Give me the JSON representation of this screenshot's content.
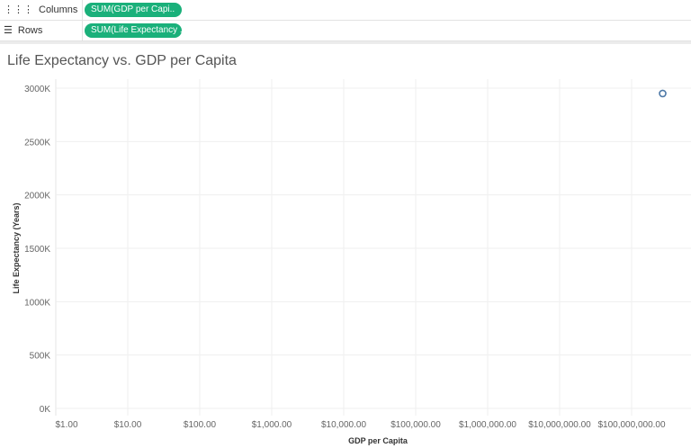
{
  "shelves": {
    "columns": {
      "label": "Columns",
      "icon": "columns-icon",
      "pill": "SUM(GDP per Capi.."
    },
    "rows": {
      "label": "Rows",
      "icon": "rows-icon",
      "pill": "SUM(Life Expectancy .."
    }
  },
  "colors": {
    "pill": "#1ab07a",
    "mark": "#4e79a7",
    "grid": "#efefef"
  },
  "chart_data": {
    "type": "scatter",
    "title": "Life Expectancy vs. GDP per Capita",
    "xlabel": "GDP per Capita",
    "ylabel": "Life Expectancy (Years)",
    "xscale": "log",
    "xlim": [
      1,
      1000000000
    ],
    "ylim": [
      0,
      3000000
    ],
    "xticks": [
      1,
      10,
      100,
      1000,
      10000,
      100000,
      1000000,
      10000000,
      100000000
    ],
    "xtick_labels": [
      "$1.00",
      "$10.00",
      "$100.00",
      "$1,000.00",
      "$10,000.00",
      "$100,000.00",
      "$1,000,000.00",
      "$10,000,000.00",
      "$100,000,000.00"
    ],
    "yticks": [
      0,
      500000,
      1000000,
      1500000,
      2000000,
      2500000,
      3000000
    ],
    "ytick_labels": [
      "0K",
      "500K",
      "1000K",
      "1500K",
      "2000K",
      "2500K",
      "3000K"
    ],
    "grid": true,
    "points": [
      {
        "x": 270000000,
        "y": 2950000
      }
    ]
  }
}
